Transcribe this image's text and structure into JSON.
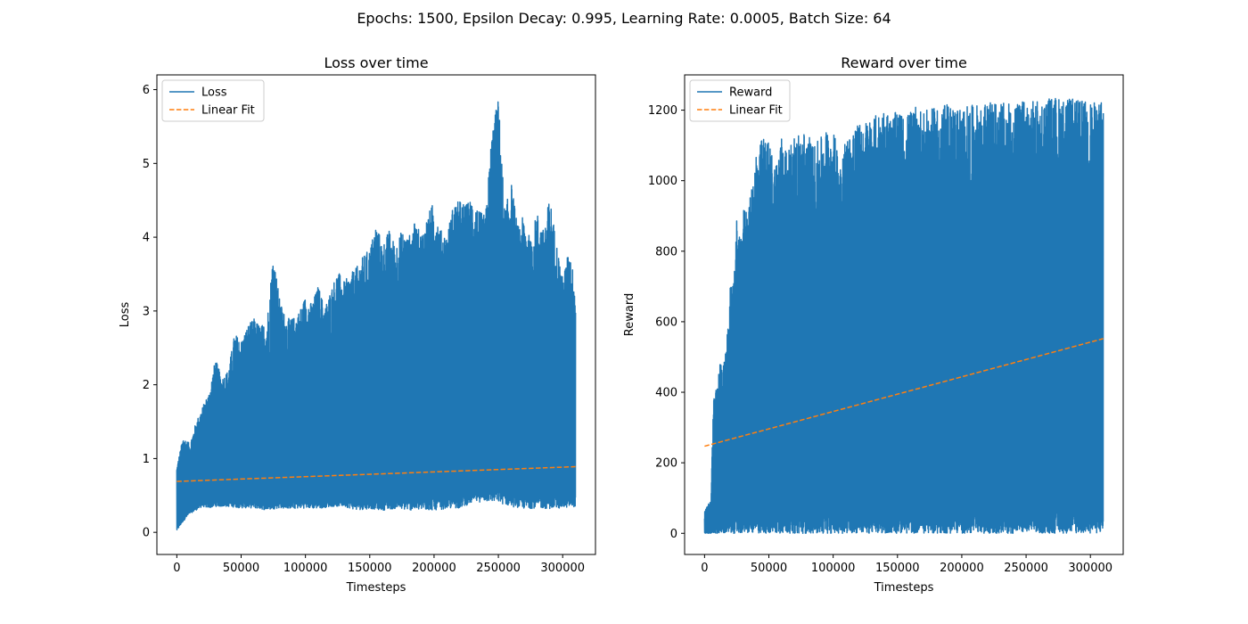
{
  "figure": {
    "suptitle": "Epochs: 1500, Epsilon Decay: 0.995, Learning Rate: 0.0005, Batch Size: 64",
    "colors": {
      "series": "#1f77b4",
      "fit": "#ff7f0e"
    }
  },
  "chart_data": [
    {
      "type": "line",
      "title": "Loss over time",
      "xlabel": "Timesteps",
      "ylabel": "Loss",
      "xlim": [
        -15500,
        325500
      ],
      "ylim": [
        -0.3,
        6.2
      ],
      "xticks": [
        0,
        50000,
        100000,
        150000,
        200000,
        250000,
        300000
      ],
      "yticks": [
        0,
        1,
        2,
        3,
        4,
        5,
        6
      ],
      "grid": false,
      "legend_position": "upper-left",
      "x_range": [
        0,
        310000
      ],
      "series": [
        {
          "name": "Loss",
          "style": "solid",
          "upper_envelope": [
            [
              0,
              0.9
            ],
            [
              5000,
              1.3
            ],
            [
              10000,
              1.2
            ],
            [
              15000,
              1.5
            ],
            [
              20000,
              1.7
            ],
            [
              25000,
              1.9
            ],
            [
              30000,
              2.35
            ],
            [
              35000,
              2.1
            ],
            [
              40000,
              2.2
            ],
            [
              45000,
              2.7
            ],
            [
              50000,
              2.6
            ],
            [
              55000,
              2.8
            ],
            [
              60000,
              2.9
            ],
            [
              65000,
              2.8
            ],
            [
              70000,
              2.85
            ],
            [
              75000,
              3.8
            ],
            [
              80000,
              3.15
            ],
            [
              85000,
              2.9
            ],
            [
              90000,
              2.9
            ],
            [
              95000,
              3.0
            ],
            [
              100000,
              3.2
            ],
            [
              105000,
              3.1
            ],
            [
              110000,
              3.35
            ],
            [
              115000,
              3.05
            ],
            [
              120000,
              3.3
            ],
            [
              125000,
              3.55
            ],
            [
              130000,
              3.4
            ],
            [
              135000,
              3.5
            ],
            [
              140000,
              3.6
            ],
            [
              145000,
              3.75
            ],
            [
              150000,
              3.85
            ],
            [
              155000,
              4.2
            ],
            [
              160000,
              3.9
            ],
            [
              165000,
              4.1
            ],
            [
              170000,
              3.9
            ],
            [
              175000,
              4.1
            ],
            [
              180000,
              4.0
            ],
            [
              185000,
              4.2
            ],
            [
              190000,
              4.05
            ],
            [
              195000,
              4.3
            ],
            [
              200000,
              4.5
            ],
            [
              205000,
              4.1
            ],
            [
              210000,
              4.05
            ],
            [
              215000,
              4.45
            ],
            [
              220000,
              4.5
            ],
            [
              225000,
              4.45
            ],
            [
              230000,
              4.55
            ],
            [
              235000,
              4.35
            ],
            [
              240000,
              4.3
            ],
            [
              245000,
              5.45
            ],
            [
              250000,
              5.9
            ],
            [
              255000,
              4.35
            ],
            [
              260000,
              4.75
            ],
            [
              265000,
              4.15
            ],
            [
              270000,
              4.3
            ],
            [
              275000,
              3.95
            ],
            [
              280000,
              4.35
            ],
            [
              285000,
              4.1
            ],
            [
              290000,
              4.55
            ],
            [
              295000,
              3.95
            ],
            [
              300000,
              3.45
            ],
            [
              305000,
              3.85
            ],
            [
              310000,
              3.35
            ]
          ],
          "lower_envelope": [
            [
              0,
              0.02
            ],
            [
              5000,
              0.15
            ],
            [
              10000,
              0.25
            ],
            [
              15000,
              0.3
            ],
            [
              20000,
              0.35
            ],
            [
              25000,
              0.33
            ],
            [
              30000,
              0.35
            ],
            [
              40000,
              0.35
            ],
            [
              50000,
              0.33
            ],
            [
              60000,
              0.33
            ],
            [
              70000,
              0.3
            ],
            [
              80000,
              0.33
            ],
            [
              90000,
              0.32
            ],
            [
              100000,
              0.33
            ],
            [
              110000,
              0.32
            ],
            [
              120000,
              0.35
            ],
            [
              130000,
              0.35
            ],
            [
              140000,
              0.3
            ],
            [
              150000,
              0.32
            ],
            [
              160000,
              0.3
            ],
            [
              170000,
              0.32
            ],
            [
              180000,
              0.3
            ],
            [
              190000,
              0.3
            ],
            [
              200000,
              0.3
            ],
            [
              210000,
              0.32
            ],
            [
              220000,
              0.33
            ],
            [
              230000,
              0.4
            ],
            [
              240000,
              0.42
            ],
            [
              250000,
              0.4
            ],
            [
              260000,
              0.35
            ],
            [
              270000,
              0.32
            ],
            [
              280000,
              0.33
            ],
            [
              290000,
              0.32
            ],
            [
              300000,
              0.33
            ],
            [
              310000,
              0.35
            ]
          ]
        },
        {
          "name": "Linear Fit",
          "style": "dashed",
          "x": [
            0,
            310000
          ],
          "y": [
            0.69,
            0.89
          ]
        }
      ]
    },
    {
      "type": "line",
      "title": "Reward over time",
      "xlabel": "Timesteps",
      "ylabel": "Reward",
      "xlim": [
        -15500,
        325500
      ],
      "ylim": [
        -60,
        1300
      ],
      "xticks": [
        0,
        50000,
        100000,
        150000,
        200000,
        250000,
        300000
      ],
      "yticks": [
        0,
        200,
        400,
        600,
        800,
        1000,
        1200
      ],
      "grid": false,
      "legend_position": "upper-left",
      "x_range": [
        0,
        310000
      ],
      "series": [
        {
          "name": "Reward",
          "style": "solid",
          "upper_envelope": [
            [
              0,
              60
            ],
            [
              3000,
              85
            ],
            [
              5000,
              90
            ],
            [
              6000,
              250
            ],
            [
              7000,
              380
            ],
            [
              10000,
              420
            ],
            [
              12000,
              490
            ],
            [
              15000,
              480
            ],
            [
              17000,
              530
            ],
            [
              20000,
              700
            ],
            [
              22000,
              700
            ],
            [
              25000,
              890
            ],
            [
              28000,
              820
            ],
            [
              30000,
              920
            ],
            [
              35000,
              940
            ],
            [
              38000,
              1020
            ],
            [
              40000,
              1090
            ],
            [
              42000,
              1080
            ],
            [
              45000,
              1130
            ],
            [
              50000,
              1110
            ],
            [
              55000,
              1050
            ],
            [
              60000,
              1130
            ],
            [
              65000,
              1080
            ],
            [
              70000,
              1130
            ],
            [
              75000,
              1140
            ],
            [
              80000,
              1140
            ],
            [
              85000,
              1100
            ],
            [
              90000,
              1120
            ],
            [
              95000,
              1150
            ],
            [
              100000,
              1140
            ],
            [
              105000,
              1080
            ],
            [
              110000,
              1120
            ],
            [
              115000,
              1150
            ],
            [
              120000,
              1160
            ],
            [
              125000,
              1170
            ],
            [
              130000,
              1180
            ],
            [
              135000,
              1190
            ],
            [
              140000,
              1210
            ],
            [
              145000,
              1180
            ],
            [
              150000,
              1200
            ],
            [
              155000,
              1180
            ],
            [
              160000,
              1200
            ],
            [
              165000,
              1210
            ],
            [
              170000,
              1200
            ],
            [
              175000,
              1200
            ],
            [
              180000,
              1210
            ],
            [
              185000,
              1220
            ],
            [
              190000,
              1215
            ],
            [
              200000,
              1210
            ],
            [
              210000,
              1215
            ],
            [
              220000,
              1220
            ],
            [
              230000,
              1225
            ],
            [
              240000,
              1215
            ],
            [
              250000,
              1230
            ],
            [
              260000,
              1225
            ],
            [
              270000,
              1240
            ],
            [
              280000,
              1235
            ],
            [
              290000,
              1230
            ],
            [
              300000,
              1225
            ],
            [
              305000,
              1220
            ],
            [
              310000,
              1230
            ]
          ],
          "lower_envelope": [
            [
              0,
              0
            ],
            [
              310000,
              0
            ]
          ]
        },
        {
          "name": "Linear Fit",
          "style": "dashed",
          "x": [
            0,
            310000
          ],
          "y": [
            247,
            552
          ]
        }
      ]
    }
  ]
}
